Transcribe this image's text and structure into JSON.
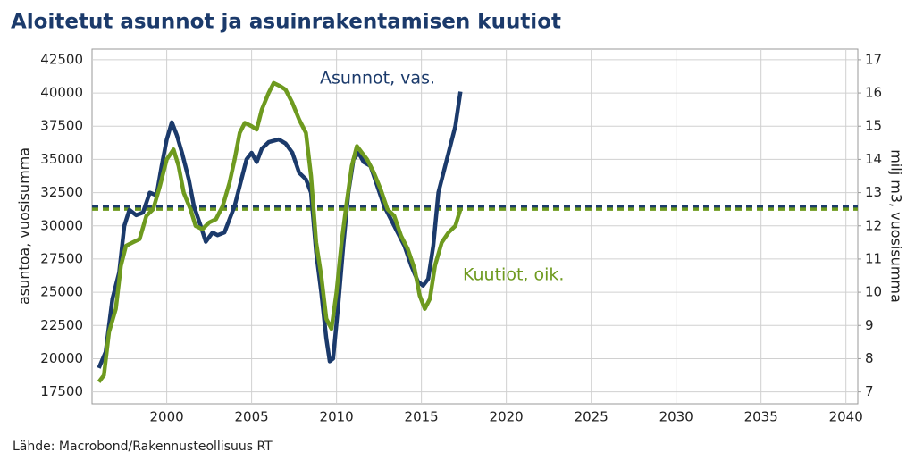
{
  "chart_data": {
    "type": "line",
    "title": "Aloitetut asunnot ja asuinrakentamisen kuutiot",
    "source": "Lähde: Macrobond/Rakennusteollisuus RT",
    "ylabel": "asuntoa, vuosisumma",
    "y2label": "milj m3, vuosisumma",
    "xlim": [
      1995.6,
      2040.7
    ],
    "xticks": [
      2000,
      2005,
      2010,
      2015,
      2020,
      2025,
      2030,
      2035,
      2040
    ],
    "ylim": [
      16600,
      43300
    ],
    "yticks": [
      17500,
      20000,
      22500,
      25000,
      27500,
      30000,
      32500,
      35000,
      37500,
      40000,
      42500
    ],
    "y2lim": [
      6.64,
      17.32
    ],
    "y2ticks": [
      7,
      8,
      9,
      10,
      11,
      12,
      13,
      14,
      15,
      16,
      17
    ],
    "grid": true,
    "series": [
      {
        "name": "Asunnot, vas.",
        "color": "#1b3a6b",
        "axis": "y",
        "x": [
          1996.0,
          1996.4,
          1996.8,
          1997.2,
          1997.5,
          1997.8,
          1998.2,
          1998.6,
          1999.0,
          1999.4,
          1999.7,
          2000.0,
          2000.3,
          2000.6,
          2000.9,
          2001.3,
          2001.6,
          2002.0,
          2002.3,
          2002.7,
          2003.0,
          2003.4,
          2003.7,
          2004.0,
          2004.4,
          2004.7,
          2005.0,
          2005.3,
          2005.6,
          2006.0,
          2006.3,
          2006.6,
          2007.0,
          2007.4,
          2007.8,
          2008.2,
          2008.5,
          2008.8,
          2009.1,
          2009.4,
          2009.6,
          2009.8,
          2010.1,
          2010.4,
          2010.7,
          2011.0,
          2011.3,
          2011.6,
          2012.0,
          2012.4,
          2012.8,
          2013.2,
          2013.6,
          2014.0,
          2014.4,
          2014.8,
          2015.1,
          2015.4,
          2015.7,
          2016.0,
          2016.3,
          2016.7,
          2017.0,
          2017.3
        ],
        "values": [
          19300,
          20500,
          24500,
          26500,
          30000,
          31200,
          30800,
          31000,
          32500,
          32300,
          34500,
          36500,
          37800,
          36800,
          35500,
          33500,
          31500,
          30000,
          28800,
          29500,
          29300,
          29500,
          30500,
          31500,
          33500,
          35000,
          35500,
          34800,
          35800,
          36300,
          36400,
          36500,
          36200,
          35500,
          34000,
          33500,
          32500,
          28000,
          25000,
          21500,
          19800,
          20000,
          24000,
          28500,
          32500,
          35000,
          35500,
          34800,
          34500,
          33000,
          31500,
          30500,
          29500,
          28500,
          27000,
          25800,
          25500,
          26000,
          28500,
          32500,
          34000,
          36000,
          37500,
          40100
        ]
      },
      {
        "name": "Kuutiot, oik.",
        "color": "#6e9a1f",
        "axis": "y2",
        "x": [
          1996.0,
          1996.3,
          1996.6,
          1997.0,
          1997.3,
          1997.6,
          1998.0,
          1998.4,
          1998.8,
          1999.2,
          1999.6,
          2000.0,
          2000.4,
          2000.7,
          2001.0,
          2001.4,
          2001.7,
          2002.1,
          2002.5,
          2002.9,
          2003.3,
          2003.7,
          2004.0,
          2004.3,
          2004.6,
          2005.0,
          2005.3,
          2005.6,
          2006.0,
          2006.3,
          2006.7,
          2007.0,
          2007.4,
          2007.8,
          2008.2,
          2008.5,
          2008.8,
          2009.1,
          2009.4,
          2009.7,
          2010.0,
          2010.3,
          2010.6,
          2010.9,
          2011.2,
          2011.5,
          2011.8,
          2012.2,
          2012.6,
          2013.0,
          2013.4,
          2013.8,
          2014.2,
          2014.6,
          2014.9,
          2015.2,
          2015.5,
          2015.8,
          2016.2,
          2016.6,
          2017.0,
          2017.3
        ],
        "values": [
          7.3,
          7.5,
          8.8,
          9.5,
          10.8,
          11.4,
          11.5,
          11.6,
          12.3,
          12.5,
          13.2,
          14.0,
          14.3,
          13.8,
          13.0,
          12.5,
          12.0,
          11.9,
          12.1,
          12.2,
          12.6,
          13.3,
          14.0,
          14.8,
          15.1,
          15.0,
          14.9,
          15.5,
          16.0,
          16.3,
          16.2,
          16.1,
          15.7,
          15.2,
          14.8,
          13.5,
          11.5,
          10.5,
          9.2,
          8.9,
          10.0,
          11.5,
          12.7,
          13.8,
          14.4,
          14.2,
          14.0,
          13.6,
          13.1,
          12.5,
          12.3,
          11.7,
          11.3,
          10.7,
          9.9,
          9.5,
          9.8,
          10.8,
          11.5,
          11.8,
          12.0,
          12.5
        ]
      }
    ],
    "reference_lines": [
      {
        "value": 31450,
        "axis": "y",
        "color": "#1b3a6b"
      },
      {
        "value": 12.5,
        "axis": "y2",
        "color": "#6e9a1f"
      }
    ]
  }
}
